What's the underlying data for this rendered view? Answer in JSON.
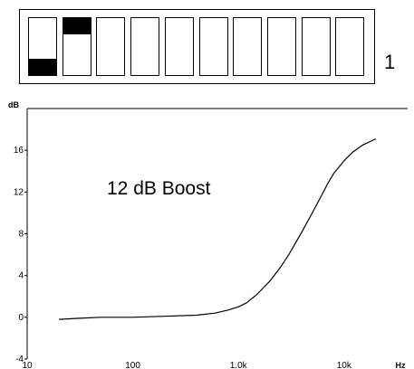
{
  "dip_switches": {
    "switch_number": "1",
    "states": [
      "down",
      "up",
      "none",
      "none",
      "none",
      "none",
      "none",
      "none",
      "none",
      "none"
    ]
  },
  "chart_data": {
    "type": "line",
    "x_scale": "log",
    "xlim": [
      10,
      40000
    ],
    "ylim": [
      -4,
      20
    ],
    "x_ticks": [
      {
        "value": 10,
        "label": "10"
      },
      {
        "value": 100,
        "label": "100"
      },
      {
        "value": 1000,
        "label": "1.0k"
      },
      {
        "value": 10000,
        "label": "10k"
      }
    ],
    "y_ticks": [
      {
        "value": -4,
        "label": "-4"
      },
      {
        "value": 0,
        "label": "0"
      },
      {
        "value": 4,
        "label": "4"
      },
      {
        "value": 8,
        "label": "8"
      },
      {
        "value": 12,
        "label": "12"
      },
      {
        "value": 16,
        "label": "16"
      }
    ],
    "ylabel": "dB",
    "xlabel": "Hz",
    "annotation": "12 dB Boost",
    "series": [
      {
        "color": "#000000",
        "x": [
          20,
          30,
          50,
          100,
          200,
          400,
          600,
          800,
          1000,
          1200,
          1500,
          2000,
          2500,
          3000,
          4000,
          5000,
          6000,
          7000,
          8000,
          10000,
          12000,
          15000,
          20000
        ],
        "y": [
          -0.2,
          -0.1,
          0,
          0,
          0.1,
          0.2,
          0.4,
          0.7,
          1.0,
          1.4,
          2.2,
          3.5,
          4.8,
          6.0,
          8.2,
          10.0,
          11.5,
          12.8,
          13.8,
          15.0,
          15.8,
          16.5,
          17.1
        ]
      }
    ]
  }
}
